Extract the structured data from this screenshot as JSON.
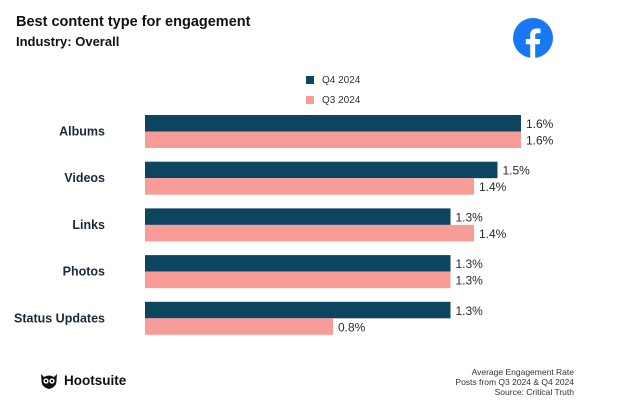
{
  "header": {
    "title": "Best content type for engagement",
    "subtitle": "Industry: Overall"
  },
  "icons": {
    "brand": "facebook-icon",
    "logo": "hootsuite-owl-icon"
  },
  "colors": {
    "q4": "#0d4561",
    "q3": "#f99b96",
    "facebook": "#1877f2"
  },
  "legend": {
    "q4_label": "Q4 2024",
    "q3_label": "Q3 2024"
  },
  "chart_data": {
    "type": "bar",
    "orientation": "horizontal",
    "categories": [
      "Albums",
      "Videos",
      "Links",
      "Photos",
      "Status Updates"
    ],
    "series": [
      {
        "name": "Q4 2024",
        "values": [
          1.6,
          1.5,
          1.3,
          1.3,
          1.3
        ],
        "labels": [
          "1.6%",
          "1.5%",
          "1.3%",
          "1.3%",
          "1.3%"
        ]
      },
      {
        "name": "Q3 2024",
        "values": [
          1.6,
          1.4,
          1.4,
          1.3,
          0.8
        ],
        "labels": [
          "1.6%",
          "1.4%",
          "1.4%",
          "1.3%",
          "0.8%"
        ]
      }
    ],
    "unit": "%",
    "xlim": [
      0,
      2.0
    ],
    "legend_position": "top",
    "grid": false
  },
  "footer": {
    "line1": "Average Engagement Rate",
    "line2": "Posts from Q3 2024 & Q4 2024",
    "line3": "Source: Critical Truth"
  },
  "brand": {
    "name": "Hootsuite"
  }
}
